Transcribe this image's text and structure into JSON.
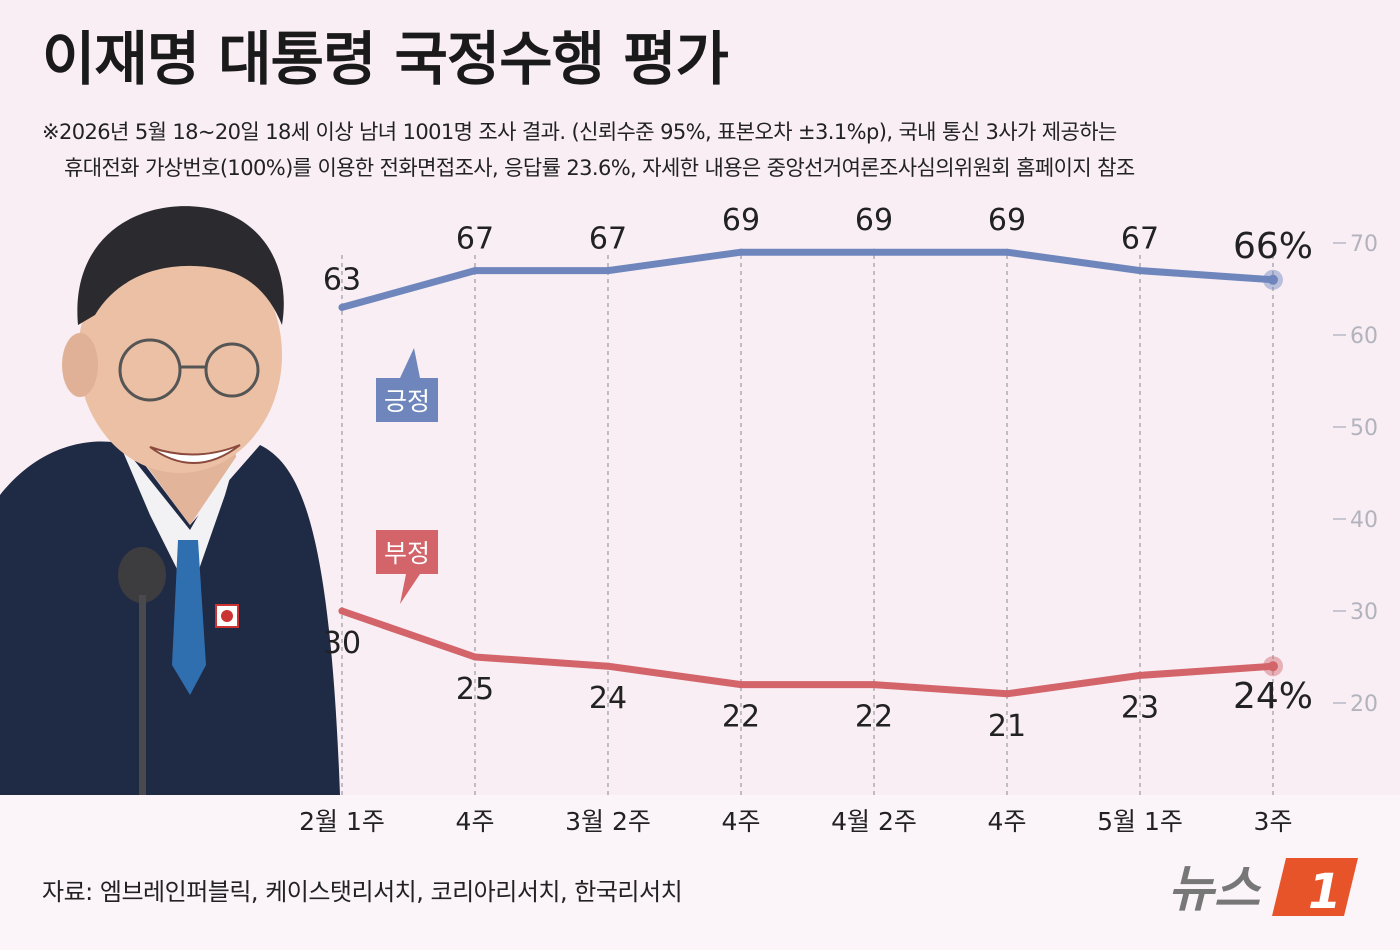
{
  "title": "이재명 대통령 국정수행 평가",
  "note_line1": "※2026년 5월 18~20일 18세 이상 남녀 1001명 조사 결과. (신뢰수준 95%, 표본오차 ±3.1%p), 국내 통신 3사가 제공하는",
  "note_line2": "휴대전화 가상번호(100%)를 이용한 전화면접조사, 응답률 23.6%, 자세한 내용은 중앙선거여론조사심의위원회 홈페이지 참조",
  "source": "자료: 엠브레인퍼블릭, 케이스탯리서치, 코리아리서치, 한국리서치",
  "logo_text": "뉴스",
  "logo_mark": "1",
  "colors": {
    "positive": "#6f86bd",
    "negative": "#d2646a",
    "background": "#f8eef4",
    "logo": "#e8542a"
  },
  "chart_data": {
    "type": "line",
    "categories": [
      "2월 1주",
      "4주",
      "3월 2주",
      "4주",
      "4월 2주",
      "4주",
      "5월 1주",
      "3주"
    ],
    "series": [
      {
        "name": "긍정",
        "values": [
          63,
          67,
          67,
          69,
          69,
          69,
          67,
          66
        ],
        "labels": [
          "63",
          "67",
          "67",
          "69",
          "69",
          "69",
          "67",
          "66%"
        ],
        "color": "#6f86bd"
      },
      {
        "name": "부정",
        "values": [
          30,
          25,
          24,
          22,
          22,
          21,
          23,
          24
        ],
        "labels": [
          "30",
          "25",
          "24",
          "22",
          "22",
          "21",
          "23",
          "24%"
        ],
        "color": "#d2646a"
      }
    ],
    "yticks": [
      "70",
      "60",
      "50",
      "40",
      "30",
      "20"
    ],
    "ylim": [
      20,
      70
    ],
    "grid": "vertical-dashed"
  }
}
